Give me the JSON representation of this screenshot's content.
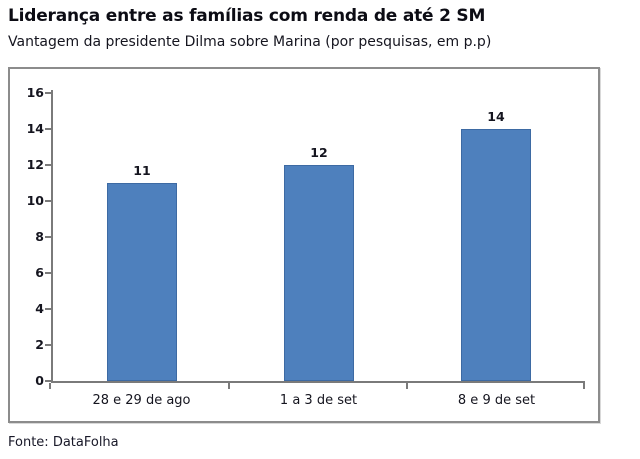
{
  "header": {
    "title": "Liderança entre as famílias com renda de até 2 SM",
    "subtitle": "Vantagem da presidente Dilma sobre Marina (por pesquisas, em p.p)"
  },
  "footer": {
    "source": "Fonte: DataFolha"
  },
  "chart_data": {
    "type": "bar",
    "title": "Liderança entre as famílias com renda de até 2 SM",
    "subtitle": "Vantagem da presidente Dilma sobre Marina (por pesquisas, em p.p)",
    "source": "Fonte: DataFolha",
    "categories": [
      "28 e 29 de ago",
      "1 a 3 de set",
      "8 e 9 de set"
    ],
    "values": [
      11,
      12,
      14
    ],
    "data_labels": [
      "11",
      "12",
      "14"
    ],
    "xlabel": "",
    "ylabel": "",
    "ylim": [
      0,
      16
    ],
    "ytick_step": 2,
    "grid": false,
    "legend": false,
    "bar_fill_color": "#4e80bd",
    "bar_border_color": "#3d6aa3",
    "axis_color": "#7a7a7a",
    "text_color": "#15151f",
    "frame_border_color": "#8c8c8c"
  }
}
